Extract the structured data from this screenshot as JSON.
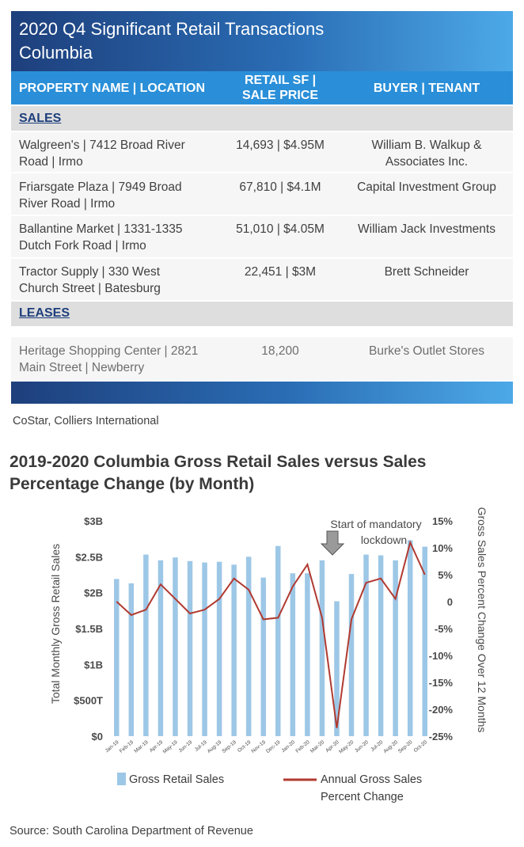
{
  "table": {
    "title_line1": "2020 Q4 Significant Retail Transactions",
    "title_line2": "Columbia",
    "headers": {
      "property": "PROPERTY NAME | LOCATION",
      "retail_line1": "RETAIL SF |",
      "retail_line2": "SALE PRICE",
      "buyer": "BUYER | TENANT"
    },
    "sales_label": "SALES",
    "sales": [
      {
        "p1": "Walgreen's | 7412 Broad River",
        "p2": "Road | Irmo",
        "sf": "14,693 | $4.95M",
        "b1": "William B. Walkup &",
        "b2": "Associates Inc."
      },
      {
        "p1": "Friarsgate Plaza | 7949 Broad",
        "p2": "River Road | Irmo",
        "sf": "67,810 | $4.1M",
        "b1": "Capital Investment Group",
        "b2": ""
      },
      {
        "p1": "Ballantine Market | 1331-1335",
        "p2": "Dutch Fork Road | Irmo",
        "sf": "51,010 | $4.05M",
        "b1": "William Jack Investments",
        "b2": ""
      },
      {
        "p1": "Tractor Supply | 330 West",
        "p2": "Church Street | Batesburg",
        "sf": "22,451 | $3M",
        "b1": "Brett Schneider",
        "b2": ""
      }
    ],
    "leases_label": "LEASES",
    "leases": [
      {
        "p1": "Heritage Shopping Center | 2821",
        "p2": "Main Street | Newberry",
        "sf": "18,200",
        "b1": "Burke's Outlet Stores",
        "b2": ""
      }
    ],
    "source": "CoStar, Colliers International"
  },
  "chart_title_line1": "2019-2020 Columbia Gross Retail Sales versus Sales",
  "chart_title_line2": "Percentage Change (by Month)",
  "chart_source": "Source: South Carolina Department of Revenue",
  "colors": {
    "bar": "#9dc7e6",
    "line": "#b03a30",
    "arrow": "#9a9a9a"
  },
  "chart_data": {
    "type": "bar+line",
    "categories": [
      "Jan-19",
      "Feb-19",
      "Mar-19",
      "Apr-19",
      "May-19",
      "Jun-19",
      "Jul-19",
      "Aug-19",
      "Sep-19",
      "Oct-19",
      "Nov-19",
      "Dec-19",
      "Jan-20",
      "Feb-20",
      "Mar-20",
      "Apr-20",
      "May-20",
      "Jun-20",
      "Jul-20",
      "Aug-20",
      "Sep-20",
      "Oct-20"
    ],
    "series": [
      {
        "name": "Gross Retail Sales",
        "axis": "left",
        "type": "bar",
        "values": [
          2.19,
          2.13,
          2.53,
          2.45,
          2.49,
          2.44,
          2.42,
          2.43,
          2.39,
          2.5,
          2.21,
          2.65,
          2.27,
          2.27,
          2.45,
          1.88,
          2.26,
          2.53,
          2.52,
          2.45,
          2.73,
          2.64
        ]
      },
      {
        "name": "Annual Gross Sales Percent Change",
        "axis": "right",
        "type": "line",
        "values": [
          0.0,
          -2.5,
          -1.5,
          3.2,
          0.5,
          -2.2,
          -1.5,
          0.5,
          4.3,
          2.2,
          -3.3,
          -3.0,
          2.8,
          6.9,
          -3.0,
          -23.5,
          -3.3,
          3.5,
          4.3,
          0.5,
          11.0,
          5.0
        ]
      }
    ],
    "left_axis": {
      "label": "Total Monthly Gross Retail Sales",
      "ticks": [
        "$0",
        "$500T",
        "$1B",
        "$1.5B",
        "$2B",
        "$2.5B",
        "$3B"
      ],
      "ylim": [
        0,
        3
      ]
    },
    "right_axis": {
      "label": "Gross Sales Percent Change Over 12 Months",
      "ticks": [
        "-25%",
        "-20%",
        "-15%",
        "-10%",
        "-5%",
        "0",
        "5%",
        "10%",
        "15%"
      ],
      "ylim": [
        -25,
        15
      ]
    },
    "annotation": {
      "line1": "Start of mandatory",
      "line2": "lockdown",
      "category": "Apr-20"
    },
    "legend": {
      "bar_label": "Gross Retail Sales",
      "line_label_1": "Annual Gross Sales",
      "line_label_2": "Percent Change"
    }
  }
}
